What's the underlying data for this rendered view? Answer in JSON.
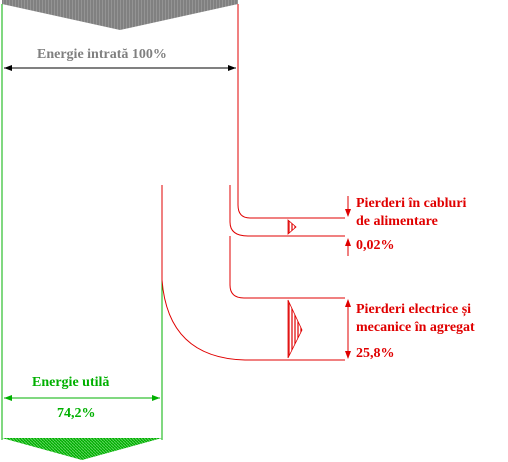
{
  "diagram": {
    "input": {
      "label": "Energie intrată 100%"
    },
    "loss_cables": {
      "label_line1": "Pierderi în cabluri",
      "label_line2": "de alimentare",
      "value": "0,02%"
    },
    "loss_aggregate": {
      "label_line1": "Pierderi electrice și",
      "label_line2": "mecanice în agregat",
      "value": "25,8%"
    },
    "output": {
      "label": "Energie utilă",
      "value": "74,2%"
    },
    "colors": {
      "input": "#808080",
      "output": "#00b000",
      "losses": "#e00000"
    }
  }
}
